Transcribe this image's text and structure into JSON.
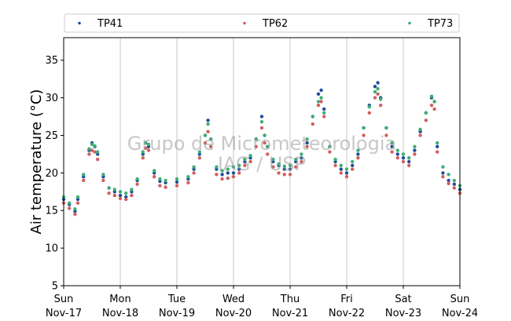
{
  "chart_data": {
    "type": "scatter",
    "ylabel": "Air temperature (°C)",
    "ylim": [
      5,
      38
    ],
    "y_ticks": [
      5,
      10,
      15,
      20,
      25,
      30,
      35
    ],
    "xlim": [
      "2024-11-17",
      "2024-11-24"
    ],
    "x_ticks": [
      {
        "day": "Sun",
        "date": "Nov-17"
      },
      {
        "day": "Mon",
        "date": "Nov-18"
      },
      {
        "day": "Tue",
        "date": "Nov-19"
      },
      {
        "day": "Wed",
        "date": "Nov-20"
      },
      {
        "day": "Thu",
        "date": "Nov-21"
      },
      {
        "day": "Fri",
        "date": "Nov-22"
      },
      {
        "day": "Sat",
        "date": "Nov-23"
      },
      {
        "day": "Sun",
        "date": "Nov-24"
      }
    ],
    "grid": "vertical",
    "legend_position": "top",
    "watermark": [
      "Grupo de Micrometeorologia",
      "IAG / USP"
    ],
    "series": [
      {
        "name": "TP41",
        "color": "#1f4e9c",
        "points": [
          [
            0,
            16.5
          ],
          [
            0.1,
            15.8
          ],
          [
            0.2,
            14.9
          ],
          [
            0.25,
            16.5
          ],
          [
            0.35,
            19.5
          ],
          [
            0.45,
            23.0
          ],
          [
            0.5,
            24.0
          ],
          [
            0.55,
            23.5
          ],
          [
            0.6,
            22.5
          ],
          [
            0.7,
            19.5
          ],
          [
            0.8,
            18.0
          ],
          [
            0.9,
            17.5
          ],
          [
            1.0,
            17.0
          ],
          [
            1.1,
            16.8
          ],
          [
            1.2,
            17.5
          ],
          [
            1.3,
            19.0
          ],
          [
            1.4,
            22.5
          ],
          [
            1.45,
            24.0
          ],
          [
            1.5,
            23.5
          ],
          [
            1.6,
            20.0
          ],
          [
            1.7,
            18.9
          ],
          [
            1.8,
            18.7
          ],
          [
            2.0,
            18.8
          ],
          [
            2.2,
            19.2
          ],
          [
            2.3,
            20.5
          ],
          [
            2.4,
            22.5
          ],
          [
            2.5,
            25.0
          ],
          [
            2.55,
            27.0
          ],
          [
            2.6,
            24.5
          ],
          [
            2.7,
            20.5
          ],
          [
            2.8,
            19.8
          ],
          [
            2.9,
            20.0
          ],
          [
            3.0,
            20.0
          ],
          [
            3.1,
            20.5
          ],
          [
            3.2,
            21.5
          ],
          [
            3.3,
            22.0
          ],
          [
            3.4,
            24.5
          ],
          [
            3.5,
            27.5
          ],
          [
            3.55,
            25.0
          ],
          [
            3.6,
            23.5
          ],
          [
            3.7,
            21.5
          ],
          [
            3.8,
            21.0
          ],
          [
            3.9,
            20.5
          ],
          [
            4.0,
            20.5
          ],
          [
            4.1,
            21.5
          ],
          [
            4.2,
            22.0
          ],
          [
            4.3,
            24.0
          ],
          [
            4.4,
            27.5
          ],
          [
            4.5,
            30.5
          ],
          [
            4.55,
            31.0
          ],
          [
            4.6,
            28.5
          ],
          [
            4.7,
            23.5
          ],
          [
            4.8,
            21.5
          ],
          [
            4.9,
            20.5
          ],
          [
            5.0,
            20.0
          ],
          [
            5.1,
            21.0
          ],
          [
            5.2,
            22.5
          ],
          [
            5.3,
            26.0
          ],
          [
            5.4,
            29.0
          ],
          [
            5.5,
            31.5
          ],
          [
            5.55,
            32.0
          ],
          [
            5.6,
            30.0
          ],
          [
            5.7,
            26.0
          ],
          [
            5.8,
            23.5
          ],
          [
            5.9,
            22.5
          ],
          [
            6.0,
            22.0
          ],
          [
            6.1,
            21.5
          ],
          [
            6.2,
            23.0
          ],
          [
            6.3,
            25.5
          ],
          [
            6.4,
            28.0
          ],
          [
            6.5,
            30.0
          ],
          [
            6.55,
            29.5
          ],
          [
            6.6,
            23.5
          ],
          [
            6.7,
            20.0
          ],
          [
            6.8,
            19.0
          ],
          [
            6.9,
            18.5
          ],
          [
            7.0,
            17.8
          ]
        ]
      },
      {
        "name": "TP62",
        "color": "#d0605e",
        "points": [
          [
            0,
            16.0
          ],
          [
            0.1,
            15.3
          ],
          [
            0.2,
            14.5
          ],
          [
            0.25,
            16.0
          ],
          [
            0.35,
            19.0
          ],
          [
            0.45,
            22.5
          ],
          [
            0.5,
            23.0
          ],
          [
            0.55,
            22.8
          ],
          [
            0.6,
            21.8
          ],
          [
            0.7,
            19.0
          ],
          [
            0.8,
            17.3
          ],
          [
            0.9,
            17.0
          ],
          [
            1.0,
            16.6
          ],
          [
            1.1,
            16.5
          ],
          [
            1.2,
            17.0
          ],
          [
            1.3,
            18.5
          ],
          [
            1.4,
            22.0
          ],
          [
            1.45,
            23.3
          ],
          [
            1.5,
            23.0
          ],
          [
            1.6,
            19.5
          ],
          [
            1.7,
            18.3
          ],
          [
            1.8,
            18.1
          ],
          [
            2.0,
            18.3
          ],
          [
            2.2,
            18.7
          ],
          [
            2.3,
            20.0
          ],
          [
            2.4,
            22.0
          ],
          [
            2.5,
            24.0
          ],
          [
            2.55,
            25.5
          ],
          [
            2.6,
            23.5
          ],
          [
            2.7,
            19.8
          ],
          [
            2.8,
            19.2
          ],
          [
            2.9,
            19.3
          ],
          [
            3.0,
            19.5
          ],
          [
            3.1,
            20.0
          ],
          [
            3.2,
            21.0
          ],
          [
            3.3,
            21.5
          ],
          [
            3.4,
            23.5
          ],
          [
            3.5,
            26.0
          ],
          [
            3.55,
            24.0
          ],
          [
            3.6,
            22.5
          ],
          [
            3.7,
            20.8
          ],
          [
            3.8,
            20.0
          ],
          [
            3.9,
            19.8
          ],
          [
            4.0,
            19.8
          ],
          [
            4.1,
            20.8
          ],
          [
            4.2,
            21.5
          ],
          [
            4.3,
            23.5
          ],
          [
            4.4,
            26.5
          ],
          [
            4.5,
            29.0
          ],
          [
            4.55,
            29.5
          ],
          [
            4.6,
            27.5
          ],
          [
            4.7,
            22.8
          ],
          [
            4.8,
            21.0
          ],
          [
            4.9,
            20.0
          ],
          [
            5.0,
            19.5
          ],
          [
            5.1,
            20.5
          ],
          [
            5.2,
            22.0
          ],
          [
            5.3,
            25.0
          ],
          [
            5.4,
            28.0
          ],
          [
            5.5,
            30.0
          ],
          [
            5.55,
            30.5
          ],
          [
            5.6,
            29.0
          ],
          [
            5.7,
            25.0
          ],
          [
            5.8,
            22.8
          ],
          [
            5.9,
            22.0
          ],
          [
            6.0,
            21.5
          ],
          [
            6.1,
            21.0
          ],
          [
            6.2,
            22.5
          ],
          [
            6.3,
            25.0
          ],
          [
            6.4,
            27.0
          ],
          [
            6.5,
            29.0
          ],
          [
            6.55,
            28.5
          ],
          [
            6.6,
            22.8
          ],
          [
            6.7,
            19.5
          ],
          [
            6.8,
            18.6
          ],
          [
            6.9,
            18.0
          ],
          [
            7.0,
            17.3
          ]
        ]
      },
      {
        "name": "TP73",
        "color": "#3fae74",
        "points": [
          [
            0,
            16.8
          ],
          [
            0.1,
            16.0
          ],
          [
            0.2,
            15.2
          ],
          [
            0.25,
            16.8
          ],
          [
            0.35,
            19.8
          ],
          [
            0.45,
            23.2
          ],
          [
            0.5,
            23.8
          ],
          [
            0.55,
            23.6
          ],
          [
            0.6,
            22.8
          ],
          [
            0.7,
            19.8
          ],
          [
            0.8,
            18.0
          ],
          [
            0.9,
            17.8
          ],
          [
            1.0,
            17.5
          ],
          [
            1.1,
            17.3
          ],
          [
            1.2,
            17.8
          ],
          [
            1.3,
            19.2
          ],
          [
            1.4,
            22.8
          ],
          [
            1.45,
            24.0
          ],
          [
            1.5,
            23.8
          ],
          [
            1.6,
            20.3
          ],
          [
            1.7,
            19.2
          ],
          [
            1.8,
            19.0
          ],
          [
            2.0,
            19.2
          ],
          [
            2.2,
            19.5
          ],
          [
            2.3,
            20.8
          ],
          [
            2.4,
            22.8
          ],
          [
            2.5,
            25.0
          ],
          [
            2.55,
            26.5
          ],
          [
            2.6,
            24.5
          ],
          [
            2.7,
            20.8
          ],
          [
            2.8,
            20.3
          ],
          [
            2.9,
            20.5
          ],
          [
            3.0,
            20.8
          ],
          [
            3.1,
            21.0
          ],
          [
            3.2,
            21.8
          ],
          [
            3.3,
            22.3
          ],
          [
            3.4,
            24.5
          ],
          [
            3.5,
            26.8
          ],
          [
            3.55,
            25.0
          ],
          [
            3.6,
            23.5
          ],
          [
            3.7,
            21.8
          ],
          [
            3.8,
            21.2
          ],
          [
            3.9,
            20.9
          ],
          [
            4.0,
            21.0
          ],
          [
            4.1,
            21.8
          ],
          [
            4.2,
            22.5
          ],
          [
            4.3,
            24.5
          ],
          [
            4.4,
            27.5
          ],
          [
            4.5,
            29.5
          ],
          [
            4.55,
            30.0
          ],
          [
            4.6,
            28.0
          ],
          [
            4.7,
            23.5
          ],
          [
            4.8,
            21.8
          ],
          [
            4.9,
            21.0
          ],
          [
            5.0,
            20.5
          ],
          [
            5.1,
            21.5
          ],
          [
            5.2,
            23.0
          ],
          [
            5.3,
            26.0
          ],
          [
            5.4,
            28.8
          ],
          [
            5.5,
            30.8
          ],
          [
            5.55,
            31.2
          ],
          [
            5.6,
            29.8
          ],
          [
            5.7,
            26.0
          ],
          [
            5.8,
            24.0
          ],
          [
            5.9,
            23.0
          ],
          [
            6.0,
            22.5
          ],
          [
            6.1,
            22.0
          ],
          [
            6.2,
            23.5
          ],
          [
            6.3,
            25.8
          ],
          [
            6.4,
            28.0
          ],
          [
            6.5,
            30.2
          ],
          [
            6.55,
            29.5
          ],
          [
            6.6,
            24.0
          ],
          [
            6.7,
            20.8
          ],
          [
            6.8,
            19.8
          ],
          [
            6.9,
            19.0
          ],
          [
            7.0,
            18.3
          ]
        ]
      }
    ]
  }
}
